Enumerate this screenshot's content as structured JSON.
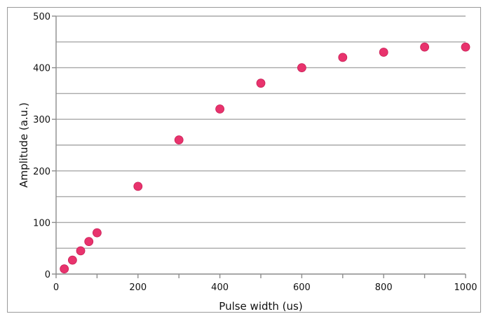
{
  "chart_data": {
    "type": "scatter",
    "title": "",
    "xlabel": "Pulse width (us)",
    "ylabel": "Amplitude (a.u.)",
    "xlim": [
      0,
      1000
    ],
    "ylim": [
      0,
      500
    ],
    "x_ticks": [
      0,
      200,
      400,
      600,
      800,
      1000
    ],
    "x_minor_ticks": [
      100,
      300,
      500,
      700,
      900
    ],
    "y_ticks": [
      0,
      100,
      200,
      300,
      400,
      500
    ],
    "y_gridlines": [
      50,
      100,
      150,
      200,
      250,
      300,
      350,
      400,
      450,
      500
    ],
    "grid": true,
    "legend": "none",
    "marker_color": "#e8336d",
    "series": [
      {
        "x": [
          20,
          40,
          60,
          80,
          100,
          200,
          300,
          400,
          500,
          600,
          700,
          800,
          900,
          1000
        ],
        "y": [
          10,
          27,
          45,
          63,
          80,
          170,
          260,
          320,
          370,
          400,
          420,
          430,
          440,
          440
        ]
      }
    ]
  }
}
